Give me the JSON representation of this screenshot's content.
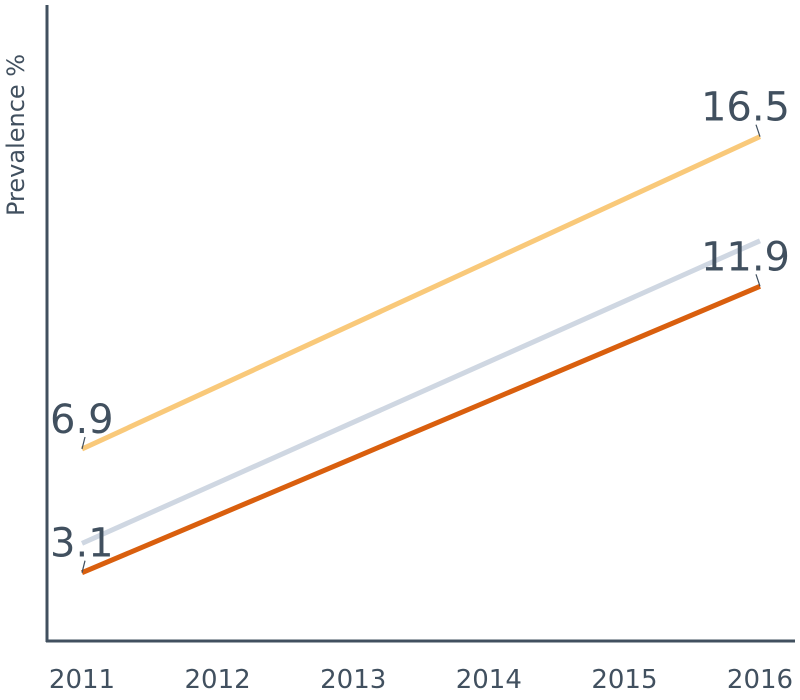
{
  "chart_data": {
    "type": "line",
    "ylabel": "Prevalence %",
    "xlabel": "",
    "x": [
      "2011",
      "2012",
      "2013",
      "2014",
      "2015",
      "2016"
    ],
    "ylim": [
      1.0,
      20.7
    ],
    "grid": false,
    "series": [
      {
        "color": "#f9c97a",
        "start": 6.9,
        "end": 16.5,
        "values": [
          6.9,
          8.82,
          10.74,
          12.66,
          14.58,
          16.5
        ],
        "show_labels": true
      },
      {
        "color": "#cfd7e2",
        "start": 4.0,
        "end": 13.3,
        "values": [
          4.0,
          5.86,
          7.72,
          9.58,
          11.44,
          13.3
        ],
        "show_labels": false
      },
      {
        "color": "#d95f0e",
        "start": 3.1,
        "end": 11.9,
        "values": [
          3.1,
          4.86,
          6.62,
          8.38,
          10.14,
          11.9
        ],
        "show_labels": true
      }
    ],
    "annotations": [
      {
        "series": 0,
        "at": "start",
        "text": "6.9"
      },
      {
        "series": 0,
        "at": "end",
        "text": "16.5"
      },
      {
        "series": 2,
        "at": "start",
        "text": "3.1"
      },
      {
        "series": 2,
        "at": "end",
        "text": "11.9"
      }
    ]
  }
}
